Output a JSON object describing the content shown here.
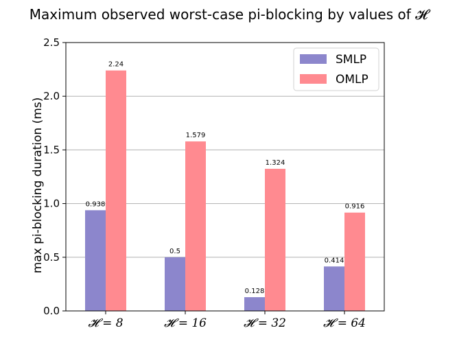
{
  "chart_data": {
    "type": "bar",
    "title": "Maximum observed worst-case pi-blocking by values of 𝓗",
    "xlabel": "",
    "ylabel": "max pi-blocking duration (ms)",
    "categories": [
      "𝓗 = 8",
      "𝓗 = 16",
      "𝓗 = 32",
      "𝓗 = 64"
    ],
    "series": [
      {
        "name": "SMLP",
        "color": "#8c86cc",
        "values": [
          0.938,
          0.5,
          0.128,
          0.414
        ],
        "labels": [
          "0.938",
          "0.5",
          "0.128",
          "0.414"
        ]
      },
      {
        "name": "OMLP",
        "color": "#ff8a90",
        "values": [
          2.24,
          1.579,
          1.324,
          0.916
        ],
        "labels": [
          "2.24",
          "1.579",
          "1.324",
          "0.916"
        ]
      }
    ],
    "ylim": [
      0,
      2.5
    ],
    "yticks": [
      "0.0",
      "0.5",
      "1.0",
      "1.5",
      "2.0",
      "2.5"
    ],
    "grid": "y",
    "legend_position": "top-right"
  }
}
